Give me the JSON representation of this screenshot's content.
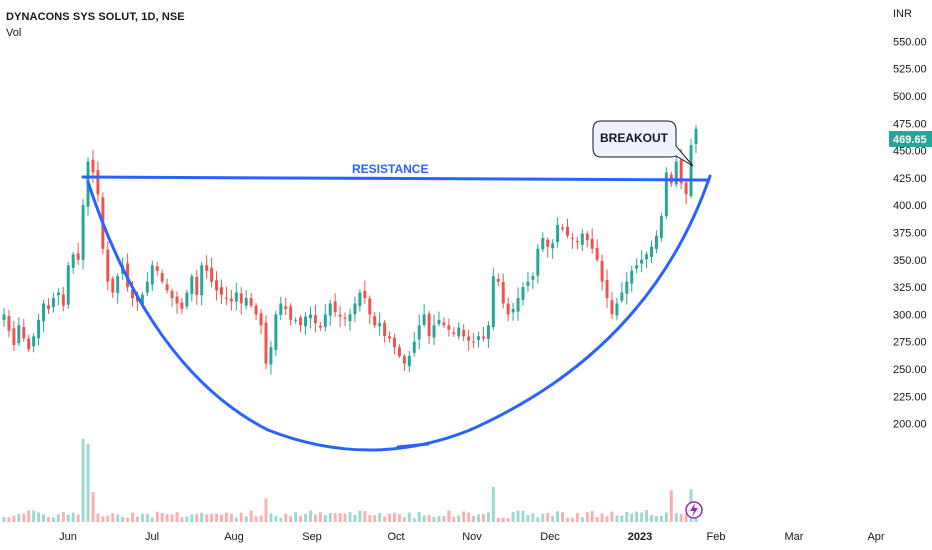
{
  "header": {
    "symbol": "DYNACONS SYS SOLUT, 1D, NSE",
    "volume_label": "Vol"
  },
  "price_scale": {
    "currency": "INR",
    "last_price": "469.65",
    "last_price_color": "#26a69a"
  },
  "colors": {
    "up": "#26a69a",
    "down": "#ef5350",
    "annotation": "#2962ff"
  },
  "annotations": {
    "resistance_label": "RESISTANCE",
    "breakout_label": "BREAKOUT"
  },
  "chart_data": {
    "type": "candlestick",
    "title": "DYNACONS SYS SOLUT, 1D, NSE",
    "ylabel": "INR",
    "ylim": [
      196,
      555
    ],
    "y_ticks": [
      "550.00",
      "525.00",
      "500.00",
      "475.00",
      "450.00",
      "425.00",
      "400.00",
      "375.00",
      "350.00",
      "325.00",
      "300.00",
      "275.00",
      "250.00",
      "225.00",
      "200.00"
    ],
    "x_ticks": [
      {
        "label": "Jun",
        "bold": false
      },
      {
        "label": "Jul",
        "bold": false
      },
      {
        "label": "Aug",
        "bold": false
      },
      {
        "label": "Sep",
        "bold": false
      },
      {
        "label": "Oct",
        "bold": false
      },
      {
        "label": "Nov",
        "bold": false
      },
      {
        "label": "Dec",
        "bold": false
      },
      {
        "label": "2023",
        "bold": true
      },
      {
        "label": "Feb",
        "bold": false
      },
      {
        "label": "Mar",
        "bold": false
      },
      {
        "label": "Apr",
        "bold": false
      }
    ],
    "closes": [
      300,
      285,
      272,
      290,
      278,
      268,
      280,
      295,
      310,
      305,
      315,
      320,
      308,
      345,
      355,
      350,
      400,
      440,
      430,
      410,
      360,
      330,
      320,
      335,
      345,
      325,
      315,
      312,
      318,
      330,
      345,
      340,
      330,
      322,
      315,
      310,
      305,
      320,
      335,
      318,
      345,
      340,
      330,
      322,
      318,
      315,
      312,
      320,
      310,
      315,
      308,
      300,
      290,
      255,
      270,
      300,
      310,
      305,
      295,
      295,
      290,
      298,
      300,
      292,
      288,
      300,
      310,
      302,
      298,
      296,
      300,
      310,
      320,
      315,
      300,
      290,
      292,
      280,
      278,
      270,
      262,
      255,
      262,
      275,
      290,
      300,
      280,
      290,
      295,
      290,
      286,
      282,
      288,
      280,
      276,
      275,
      280,
      278,
      290,
      335,
      330,
      310,
      300,
      305,
      315,
      325,
      330,
      335,
      360,
      370,
      362,
      365,
      382,
      378,
      372,
      370,
      366,
      374,
      368,
      360,
      350,
      330,
      315,
      300,
      310,
      320,
      330,
      340,
      345,
      350,
      355,
      362,
      372,
      390,
      430,
      420,
      440,
      420,
      410,
      455,
      470
    ],
    "resistance_level": 440,
    "resistance_level_right": 438,
    "breakout_high": 472
  }
}
